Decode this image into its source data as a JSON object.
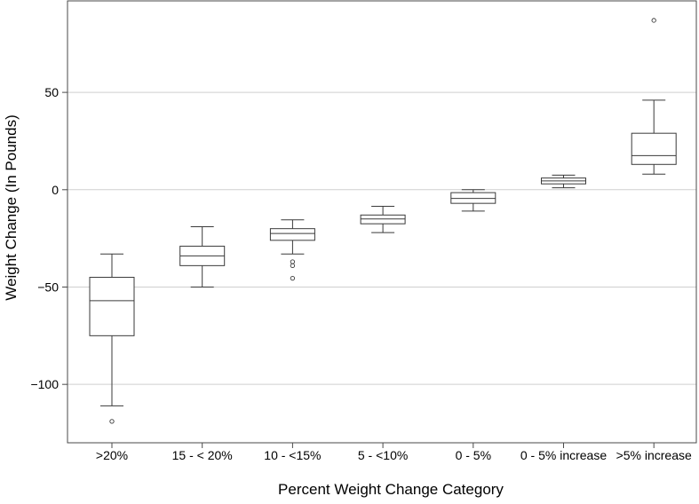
{
  "chart_data": {
    "type": "box",
    "title": "",
    "xlabel": "Percent Weight Change Category",
    "ylabel": "Weight Change (In Pounds)",
    "ylim": [
      -130,
      97
    ],
    "yticks": [
      {
        "value": 50,
        "label": "50"
      },
      {
        "value": 0,
        "label": "0"
      },
      {
        "value": -50,
        "label": "−50"
      },
      {
        "value": -100,
        "label": "−100"
      }
    ],
    "grid": true,
    "categories": [
      ">20%",
      "15 - < 20%",
      "10 - <15%",
      "5 - <10%",
      "0 - 5%",
      "0 - 5% increase",
      ">5% increase"
    ],
    "boxes": [
      {
        "category": ">20%",
        "whisker_low": -111,
        "q1": -75,
        "median": -57,
        "q3": -45,
        "whisker_high": -33,
        "outliers": [
          -119
        ]
      },
      {
        "category": "15 - < 20%",
        "whisker_low": -50,
        "q1": -39,
        "median": -34,
        "q3": -29,
        "whisker_high": -19,
        "outliers": []
      },
      {
        "category": "10 - <15%",
        "whisker_low": -33,
        "q1": -26,
        "median": -22.5,
        "q3": -20,
        "whisker_high": -15.5,
        "outliers": [
          -37,
          -39,
          -45.5
        ]
      },
      {
        "category": "5 - <10%",
        "whisker_low": -22,
        "q1": -17.5,
        "median": -15,
        "q3": -13,
        "whisker_high": -8.5,
        "outliers": []
      },
      {
        "category": "0 - 5%",
        "whisker_low": -11,
        "q1": -7,
        "median": -4.5,
        "q3": -1.5,
        "whisker_high": 0,
        "outliers": []
      },
      {
        "category": "0 - 5% increase",
        "whisker_low": 1,
        "q1": 3,
        "median": 4.5,
        "q3": 6,
        "whisker_high": 7.5,
        "outliers": []
      },
      {
        "category": ">5% increase",
        "whisker_low": 8,
        "q1": 13,
        "median": 17.5,
        "q3": 29,
        "whisker_high": 46,
        "outliers": [
          87
        ]
      }
    ],
    "colors": {
      "box_stroke": "#3a3a3a",
      "grid": "#cfcfcf",
      "axis": "#4a4a4a",
      "background": "#ffffff"
    }
  }
}
